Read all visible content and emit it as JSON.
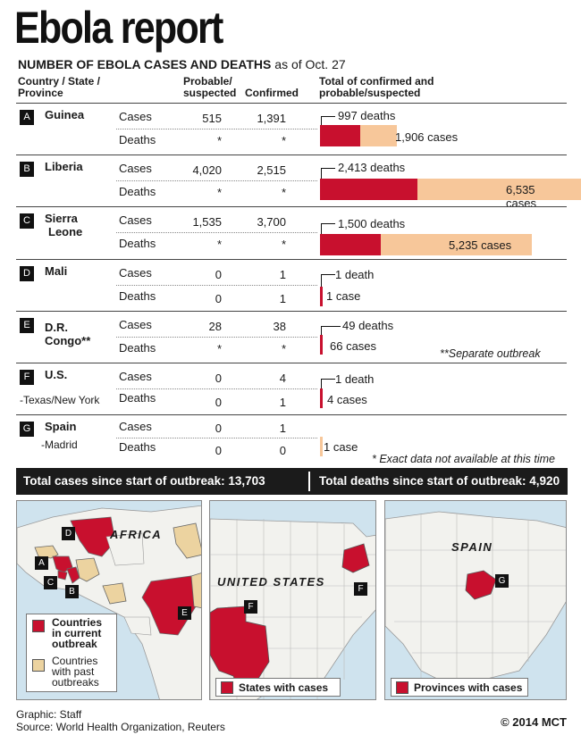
{
  "title": "Ebola report",
  "subtitle_bold": "NUMBER OF EBOLA CASES AND DEATHS",
  "subtitle_rest": " as of Oct. 27",
  "headers": {
    "country_l1": "Country / State /",
    "country_l2": "Province",
    "probable_l1": "Probable/",
    "probable_l2": "suspected",
    "confirmed": "Confirmed",
    "total_l1": "Total of confirmed and",
    "total_l2": "probable/suspected"
  },
  "row_labels": {
    "cases": "Cases",
    "deaths": "Deaths"
  },
  "rows": [
    {
      "letter": "A",
      "name_l1": "Guinea",
      "name_l2": "",
      "sub": "",
      "cases_prob": "515",
      "cases_conf": "1,391",
      "deaths_prob": "*",
      "deaths_conf": "*",
      "deaths_label": "997 deaths",
      "cases_label": "1,906 cases",
      "deaths_total": 997,
      "cases_total": 1906
    },
    {
      "letter": "B",
      "name_l1": "Liberia",
      "name_l2": "",
      "sub": "",
      "cases_prob": "4,020",
      "cases_conf": "2,515",
      "deaths_prob": "*",
      "deaths_conf": "*",
      "deaths_label": "2,413 deaths",
      "cases_label": "6,535 cases",
      "deaths_total": 2413,
      "cases_total": 6535
    },
    {
      "letter": "C",
      "name_l1": "Sierra",
      "name_l2": "Leone",
      "sub": "",
      "cases_prob": "1,535",
      "cases_conf": "3,700",
      "deaths_prob": "*",
      "deaths_conf": "*",
      "deaths_label": "1,500 deaths",
      "cases_label": "5,235 cases",
      "deaths_total": 1500,
      "cases_total": 5235
    },
    {
      "letter": "D",
      "name_l1": "Mali",
      "name_l2": "",
      "sub": "",
      "cases_prob": "0",
      "cases_conf": "1",
      "deaths_prob": "0",
      "deaths_conf": "1",
      "deaths_label": "1 death",
      "cases_label": "1 case",
      "deaths_total": 1,
      "cases_total": 1
    },
    {
      "letter": "E",
      "name_l1": "D.R.",
      "name_l2": "Congo**",
      "sub": "",
      "cases_prob": "28",
      "cases_conf": "38",
      "deaths_prob": "*",
      "deaths_conf": "*",
      "deaths_label": "49 deaths",
      "cases_label": "66 cases",
      "deaths_total": 49,
      "cases_total": 66
    },
    {
      "letter": "F",
      "name_l1": "U.S.",
      "name_l2": "",
      "sub": "-Texas/New York",
      "cases_prob": "0",
      "cases_conf": "4",
      "deaths_prob": "0",
      "deaths_conf": "1",
      "deaths_label": "1 death",
      "cases_label": "4 cases",
      "deaths_total": 1,
      "cases_total": 4
    },
    {
      "letter": "G",
      "name_l1": "Spain",
      "name_l2": "",
      "sub": "-Madrid",
      "cases_prob": "0",
      "cases_conf": "1",
      "deaths_prob": "0",
      "deaths_conf": "0",
      "deaths_label": "",
      "cases_label": "1 case",
      "deaths_total": 0,
      "cases_total": 1
    }
  ],
  "separate_note": "**Separate outbreak",
  "exact_note": "* Exact data not available at this time",
  "totals": {
    "cases": "Total cases since start of outbreak: 13,703",
    "deaths": "Total deaths since start of outbreak: 4,920"
  },
  "maps": {
    "africa": {
      "label": "AFRICA",
      "legend_current_l1": "Countries",
      "legend_current_l2": "in current",
      "legend_current_l3": "outbreak",
      "legend_past_l1": "Countries",
      "legend_past_l2": "with past",
      "legend_past_l3": "outbreaks",
      "markers": [
        "A",
        "B",
        "C",
        "D",
        "E"
      ]
    },
    "us": {
      "label": "UNITED STATES",
      "legend": "States with cases",
      "markers": [
        "F",
        "F"
      ]
    },
    "spain": {
      "label": "SPAIN",
      "legend": "Provinces with cases",
      "markers": [
        "G"
      ]
    }
  },
  "colors": {
    "deaths": "#c8102e",
    "cases": "#f7c79a",
    "past": "#ecd3a0",
    "water": "#cfe3ee",
    "land": "#f2f2ee"
  },
  "footer": {
    "graphic": "Graphic: Staff",
    "source": "Source: World Health Organization, Reuters",
    "copyright": "© 2014 MCT"
  }
}
